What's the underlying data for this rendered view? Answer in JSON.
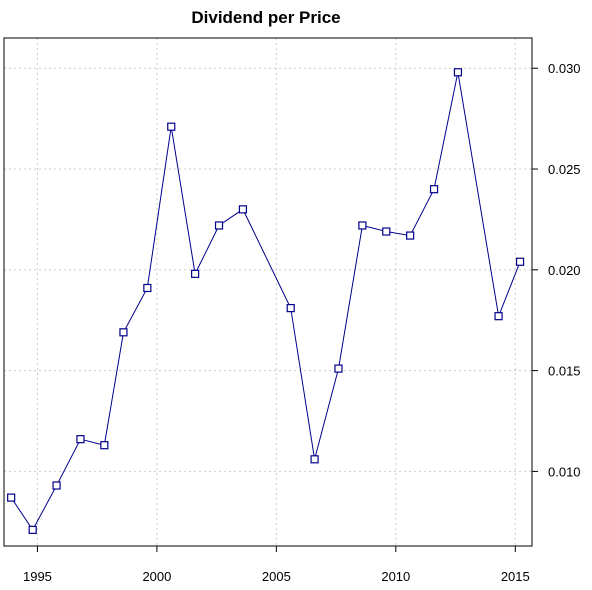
{
  "chart_data": {
    "type": "line",
    "title": "Dividend per Price",
    "xlabel": "",
    "ylabel": "",
    "xlim": [
      1993.6,
      2015.7
    ],
    "ylim": [
      0.0063,
      0.0315
    ],
    "x_ticks": [
      1995,
      2000,
      2005,
      2010,
      2015
    ],
    "y_ticks": [
      0.01,
      0.015,
      0.02,
      0.025,
      0.03
    ],
    "y_tick_labels": [
      "0.010",
      "0.015",
      "0.020",
      "0.025",
      "0.030"
    ],
    "y_axis_position": "right",
    "grid": true,
    "marker": "open-square",
    "line_color": "#00008b",
    "x": [
      1993.9,
      1994.8,
      1995.8,
      1996.8,
      1997.8,
      1998.6,
      1999.6,
      2000.6,
      2001.6,
      2002.6,
      2003.6,
      2005.6,
      2006.6,
      2007.6,
      2008.6,
      2009.6,
      2010.6,
      2011.6,
      2012.6,
      2014.3,
      2015.2
    ],
    "values": [
      0.0087,
      0.0071,
      0.0093,
      0.0116,
      0.0113,
      0.0169,
      0.0191,
      0.0271,
      0.0198,
      0.0222,
      0.023,
      0.0181,
      0.0106,
      0.0151,
      0.0222,
      0.0219,
      0.0217,
      0.024,
      0.0298,
      0.0177,
      0.0204
    ]
  }
}
